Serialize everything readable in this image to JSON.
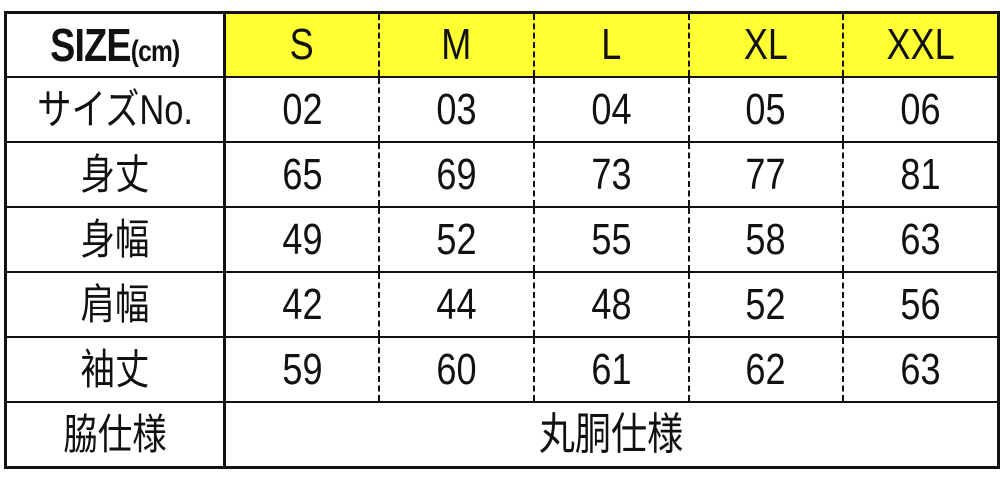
{
  "header": {
    "label": "SIZE",
    "unit": "(cm)",
    "sizes": [
      "S",
      "M",
      "L",
      "XL",
      "XXL"
    ],
    "highlight_color": "#ffff33"
  },
  "rows": [
    {
      "label": "サイズNo.",
      "values": [
        "02",
        "03",
        "04",
        "05",
        "06"
      ]
    },
    {
      "label": "身丈",
      "values": [
        "65",
        "69",
        "73",
        "77",
        "81"
      ]
    },
    {
      "label": "身幅",
      "values": [
        "49",
        "52",
        "55",
        "58",
        "63"
      ]
    },
    {
      "label": "肩幅",
      "values": [
        "42",
        "44",
        "48",
        "52",
        "56"
      ]
    },
    {
      "label": "袖丈",
      "values": [
        "59",
        "60",
        "61",
        "62",
        "63"
      ]
    }
  ],
  "footer": {
    "label": "脇仕様",
    "value": "丸胴仕様"
  }
}
